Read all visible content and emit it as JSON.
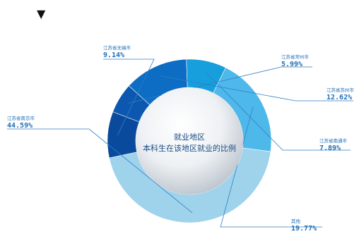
{
  "marker": "▼",
  "chart_data": {
    "type": "pie",
    "donut": true,
    "center_title": "就业地区",
    "center_subtitle": "本科生在该地区就业的比例",
    "slices": [
      {
        "name": "江苏省无锡市",
        "value": 9.14,
        "label": "9.14%",
        "color": "#0a4a9c"
      },
      {
        "name": "江苏省常州市",
        "value": 5.99,
        "label": "5.99%",
        "color": "#0c58b0"
      },
      {
        "name": "江苏省苏州市",
        "value": 12.62,
        "label": "12.62%",
        "color": "#0d6cc3"
      },
      {
        "name": "江苏省南通市",
        "value": 7.89,
        "label": "7.89%",
        "color": "#169fdc"
      },
      {
        "name": "其他",
        "value": 19.77,
        "label": "19.77%",
        "color": "#4fb8ea"
      },
      {
        "name": "江苏省南京市",
        "value": 44.59,
        "label": "44.59%",
        "color": "#9fd3ec"
      }
    ]
  }
}
